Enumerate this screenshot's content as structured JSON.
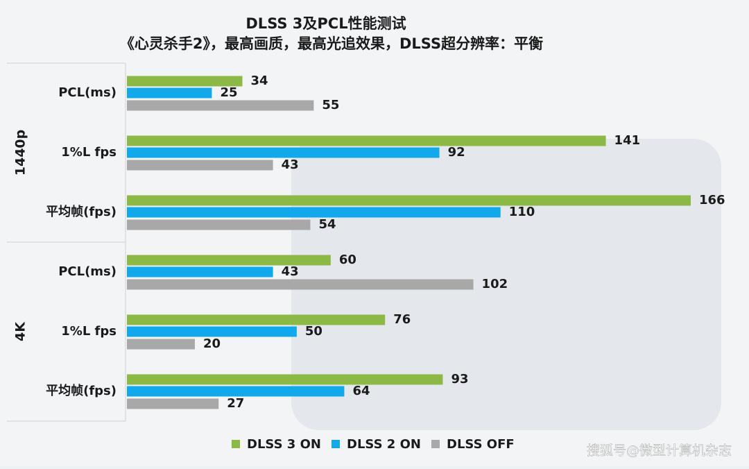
{
  "chart_data": {
    "type": "bar",
    "orientation": "horizontal",
    "title": "DLSS 3及PCL性能测试",
    "subtitle": "《心灵杀手2》，最高画质，最高光追效果，DLSS超分辨率：平衡",
    "groups": [
      "1440p",
      "4K"
    ],
    "categories": [
      "PCL(ms)",
      "1%L fps",
      "平均帧(fps)",
      "PCL(ms)",
      "1%L fps",
      "平均帧(fps)"
    ],
    "series": [
      {
        "name": "DLSS 3 ON",
        "color": "#8cb946",
        "values": [
          34,
          141,
          166,
          60,
          76,
          93
        ]
      },
      {
        "name": "DLSS 2 ON",
        "color": "#12a9ec",
        "values": [
          25,
          92,
          110,
          43,
          50,
          64
        ]
      },
      {
        "name": "DLSS OFF",
        "color": "#a8a8a8",
        "values": [
          55,
          43,
          54,
          102,
          20,
          27
        ]
      }
    ],
    "watermark": "搜狐号@微型计算机杂志"
  }
}
